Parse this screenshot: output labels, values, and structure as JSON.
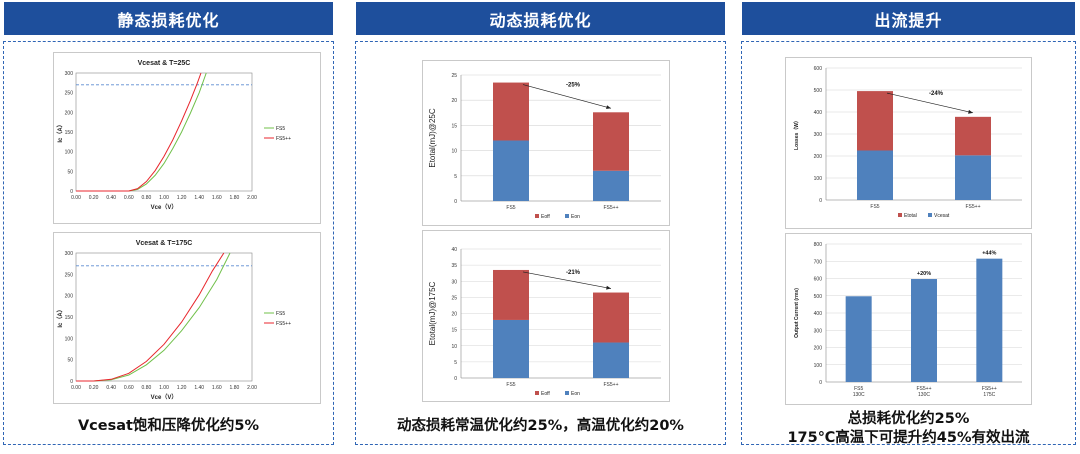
{
  "panels": [
    {
      "title": "静态损耗优化",
      "caption_lines": [
        "Vcesat饱和压降优化约5%"
      ]
    },
    {
      "title": "动态损耗优化",
      "caption_lines": [
        "动态损耗常温优化约25%，高温优化约20%"
      ]
    },
    {
      "title": "出流提升",
      "caption_lines": [
        "总损耗优化约25%",
        "175℃高温下可提升约45%有效出流"
      ]
    }
  ],
  "colors": {
    "header": "#1e4f9c",
    "red": "#c0504d",
    "blue": "#4f81bd",
    "green_line": "#70c04a",
    "red_line": "#e8262c",
    "ref_dash": "#5b8bd0"
  },
  "chart_data": [
    {
      "id": "vcesat_25",
      "type": "line",
      "title": "Vcesat & T=25C",
      "xlabel": "Vce（V）",
      "ylabel": "Ic（A）",
      "xlim": [
        0,
        2
      ],
      "ylim": [
        0,
        300
      ],
      "x_ticks": [
        "0.00",
        "0.20",
        "0.40",
        "0.60",
        "0.80",
        "1.00",
        "1.20",
        "1.40",
        "1.60",
        "1.80",
        "2.00"
      ],
      "y_ticks": [
        "0",
        "50",
        "100",
        "150",
        "200",
        "250",
        "300"
      ],
      "reference_line_y": 270,
      "legend": "right",
      "series": [
        {
          "name": "FS5",
          "color": "#70c04a",
          "points": [
            [
              0,
              0
            ],
            [
              0.6,
              0
            ],
            [
              0.7,
              4
            ],
            [
              0.8,
              18
            ],
            [
              0.9,
              40
            ],
            [
              1.0,
              70
            ],
            [
              1.1,
              108
            ],
            [
              1.2,
              150
            ],
            [
              1.3,
              198
            ],
            [
              1.4,
              250
            ],
            [
              1.48,
              300
            ]
          ]
        },
        {
          "name": "FS5++",
          "color": "#e8262c",
          "points": [
            [
              0,
              0
            ],
            [
              0.6,
              0
            ],
            [
              0.7,
              6
            ],
            [
              0.8,
              24
            ],
            [
              0.9,
              52
            ],
            [
              1.0,
              88
            ],
            [
              1.1,
              130
            ],
            [
              1.2,
              178
            ],
            [
              1.3,
              230
            ],
            [
              1.38,
              275
            ],
            [
              1.42,
              300
            ]
          ]
        }
      ]
    },
    {
      "id": "vcesat_175",
      "type": "line",
      "title": "Vcesat & T=175C",
      "xlabel": "Vce（V）",
      "ylabel": "Ic（A）",
      "xlim": [
        0,
        2
      ],
      "ylim": [
        0,
        300
      ],
      "x_ticks": [
        "0.00",
        "0.20",
        "0.40",
        "0.60",
        "0.80",
        "1.00",
        "1.20",
        "1.40",
        "1.60",
        "1.80",
        "2.00"
      ],
      "y_ticks": [
        "0",
        "50",
        "100",
        "150",
        "200",
        "250",
        "300"
      ],
      "reference_line_y": 270,
      "legend": "right",
      "series": [
        {
          "name": "FS5",
          "color": "#70c04a",
          "points": [
            [
              0,
              0
            ],
            [
              0.2,
              0
            ],
            [
              0.4,
              3
            ],
            [
              0.6,
              14
            ],
            [
              0.8,
              38
            ],
            [
              1.0,
              72
            ],
            [
              1.2,
              118
            ],
            [
              1.4,
              172
            ],
            [
              1.6,
              238
            ],
            [
              1.75,
              300
            ]
          ]
        },
        {
          "name": "FS5++",
          "color": "#e8262c",
          "points": [
            [
              0,
              0
            ],
            [
              0.2,
              0
            ],
            [
              0.4,
              4
            ],
            [
              0.6,
              18
            ],
            [
              0.8,
              46
            ],
            [
              1.0,
              86
            ],
            [
              1.2,
              138
            ],
            [
              1.4,
              202
            ],
            [
              1.55,
              258
            ],
            [
              1.68,
              300
            ]
          ]
        }
      ]
    },
    {
      "id": "etotal_25",
      "type": "bar",
      "stacked": true,
      "ylabel": "Etotal(mJ)@25C",
      "ylim": [
        0,
        25
      ],
      "y_ticks": [
        "0",
        "5",
        "10",
        "15",
        "20",
        "25"
      ],
      "categories": [
        "FS5",
        "FS5++"
      ],
      "series": [
        {
          "name": "Eon",
          "color": "#4f81bd",
          "values": [
            12,
            6
          ]
        },
        {
          "name": "Eoff",
          "color": "#c0504d",
          "values": [
            11.5,
            11.6
          ]
        }
      ],
      "annotation": "-25%",
      "legend": "bottom"
    },
    {
      "id": "etotal_175",
      "type": "bar",
      "stacked": true,
      "ylabel": "Etotal(mJ)@175C",
      "ylim": [
        0,
        40
      ],
      "y_ticks": [
        "0",
        "5",
        "10",
        "15",
        "20",
        "25",
        "30",
        "35",
        "40"
      ],
      "categories": [
        "FS5",
        "FS5++"
      ],
      "series": [
        {
          "name": "Eon",
          "color": "#4f81bd",
          "values": [
            18,
            11
          ]
        },
        {
          "name": "Eoff",
          "color": "#c0504d",
          "values": [
            15.5,
            15.5
          ]
        }
      ],
      "annotation": "-21%",
      "legend": "bottom"
    },
    {
      "id": "losses",
      "type": "bar",
      "stacked": true,
      "ylabel": "Losses（W）",
      "ylim": [
        0,
        600
      ],
      "y_ticks": [
        "0",
        "100",
        "200",
        "300",
        "400",
        "500",
        "600"
      ],
      "categories": [
        "FS5",
        "FS5++"
      ],
      "series": [
        {
          "name": "Vcesat",
          "color": "#4f81bd",
          "values": [
            225,
            203
          ]
        },
        {
          "name": "Etotal",
          "color": "#c0504d",
          "values": [
            270,
            175
          ]
        }
      ],
      "annotation": "-24%",
      "legend": "bottom"
    },
    {
      "id": "output_current",
      "type": "bar",
      "ylabel": "Output Current (rms)",
      "ylim": [
        0,
        800
      ],
      "y_ticks": [
        "0",
        "100",
        "200",
        "300",
        "400",
        "500",
        "600",
        "700",
        "800"
      ],
      "categories": [
        [
          "FS5",
          "130C"
        ],
        [
          "FS5++",
          "130C"
        ],
        [
          "FS5++",
          "175C"
        ]
      ],
      "series": [
        {
          "name": "Output Current",
          "color": "#4f81bd",
          "values": [
            497,
            597,
            715
          ]
        }
      ],
      "bar_labels": [
        "",
        "+20%",
        "+44%"
      ]
    }
  ]
}
